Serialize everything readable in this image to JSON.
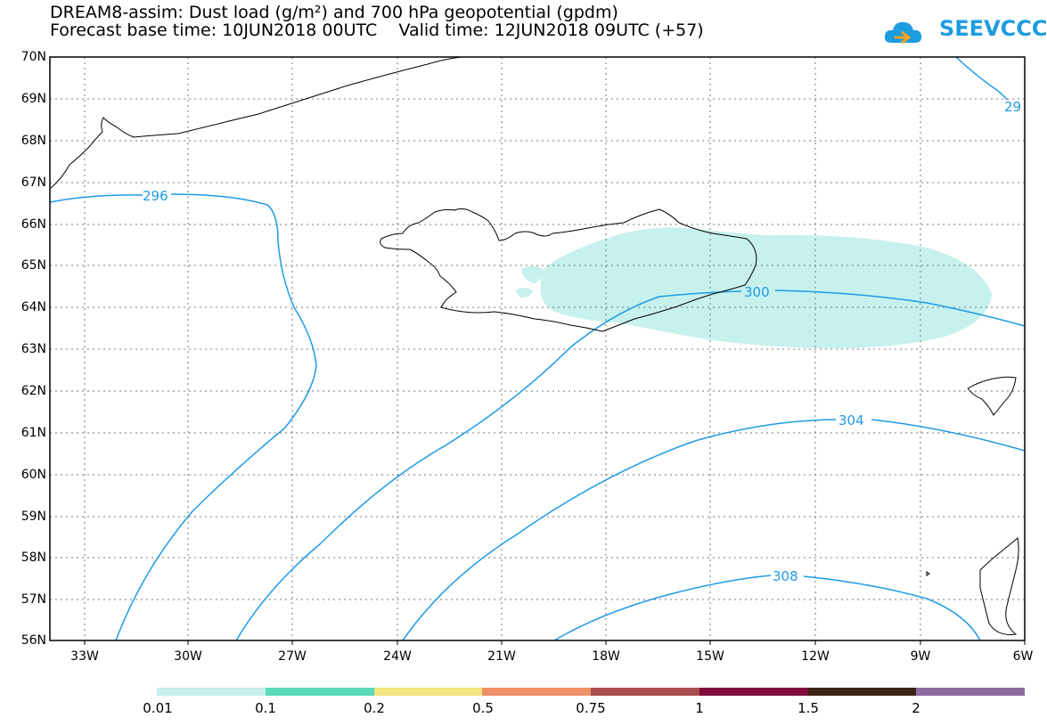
{
  "title_line1": "DREAM8-assim: Dust load (g/m²) and 700 hPa geopotential (gpdm)",
  "title_line2": "Forecast base time: 10JUN2018 00UTC    Valid time: 12JUN2018 09UTC (+57)",
  "logo_text": "SEEVCCC",
  "logo_icon": "cloud-icon",
  "lat_labels": [
    "70N",
    "69N",
    "68N",
    "67N",
    "66N",
    "65N",
    "64N",
    "63N",
    "62N",
    "61N",
    "60N",
    "59N",
    "58N",
    "57N",
    "56N"
  ],
  "lon_labels": [
    "33W",
    "30W",
    "27W",
    "24W",
    "21W",
    "18W",
    "15W",
    "12W",
    "9W",
    "6W"
  ],
  "contour_labels": [
    "296",
    "300",
    "304",
    "308",
    "29"
  ],
  "colorbar": {
    "labels": [
      "0.01",
      "0.1",
      "0.2",
      "0.5",
      "0.75",
      "1",
      "1.5",
      "2"
    ],
    "colors": [
      "#c6f1ec",
      "#5ad9b6",
      "#f3e77f",
      "#ee9169",
      "#a84e4e",
      "#800b3c",
      "#3b2211",
      "#8e6aa1"
    ]
  },
  "colors": {
    "contour": "#1f9be6",
    "coast": "#000000",
    "dust": "#c6f1ec"
  }
}
